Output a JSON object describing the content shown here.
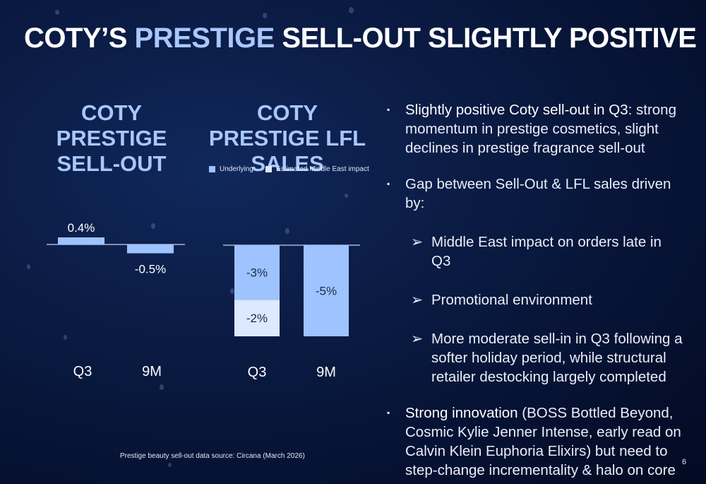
{
  "title": {
    "part1": "COTY’S ",
    "highlight": "PRESTIGE",
    "part2": " SELL-OUT SLIGHTLY POSITIVE"
  },
  "colors": {
    "accent": "#a9c7ff",
    "underlying": "#9ec3ff",
    "middle_east": "#dce9ff"
  },
  "chart_data": [
    {
      "type": "bar",
      "title": "COTY PRESTIGE SELL-OUT",
      "categories": [
        "Q3",
        "9M"
      ],
      "values": [
        0.4,
        -0.5
      ],
      "value_labels": [
        "0.4%",
        "-0.5%"
      ],
      "xlabel": "",
      "ylabel": ""
    },
    {
      "type": "bar",
      "stacked": true,
      "title": "COTY PRESTIGE LFL SALES",
      "categories": [
        "Q3",
        "9M"
      ],
      "legend": [
        "Underlying",
        "Estimated Middle East impact"
      ],
      "legend_position": "top",
      "series": [
        {
          "name": "Underlying",
          "values": [
            -3,
            -5
          ],
          "labels": [
            "-3%",
            "-5%"
          ]
        },
        {
          "name": "Estimated Middle East impact",
          "values": [
            -2,
            null
          ],
          "labels": [
            "-2%",
            ""
          ]
        }
      ],
      "xlabel": "",
      "ylabel": ""
    }
  ],
  "bullets": [
    {
      "bold": "Slightly positive Coty sell-out in Q3:",
      "text": " strong momentum in prestige cosmetics, slight declines in prestige fragrance sell-out"
    },
    {
      "bold": "",
      "text": "Gap between Sell-Out & LFL sales driven by:",
      "subs": [
        "Middle East impact on orders late in Q3",
        "Promotional environment",
        "More moderate sell-in in Q3 following a softer holiday period, while structural retailer destocking largely completed"
      ]
    },
    {
      "bold": "Strong innovation",
      "text": " (BOSS Bottled Beyond, Cosmic Kylie Jenner Intense, early read on Calvin Klein Euphoria Elixirs) but need to step-change incrementality & halo on core"
    }
  ],
  "bullet_marker": "▪",
  "sub_marker": "➢",
  "source": "Prestige beauty sell-out data source: Circana (March 2026)",
  "page_number": "6"
}
